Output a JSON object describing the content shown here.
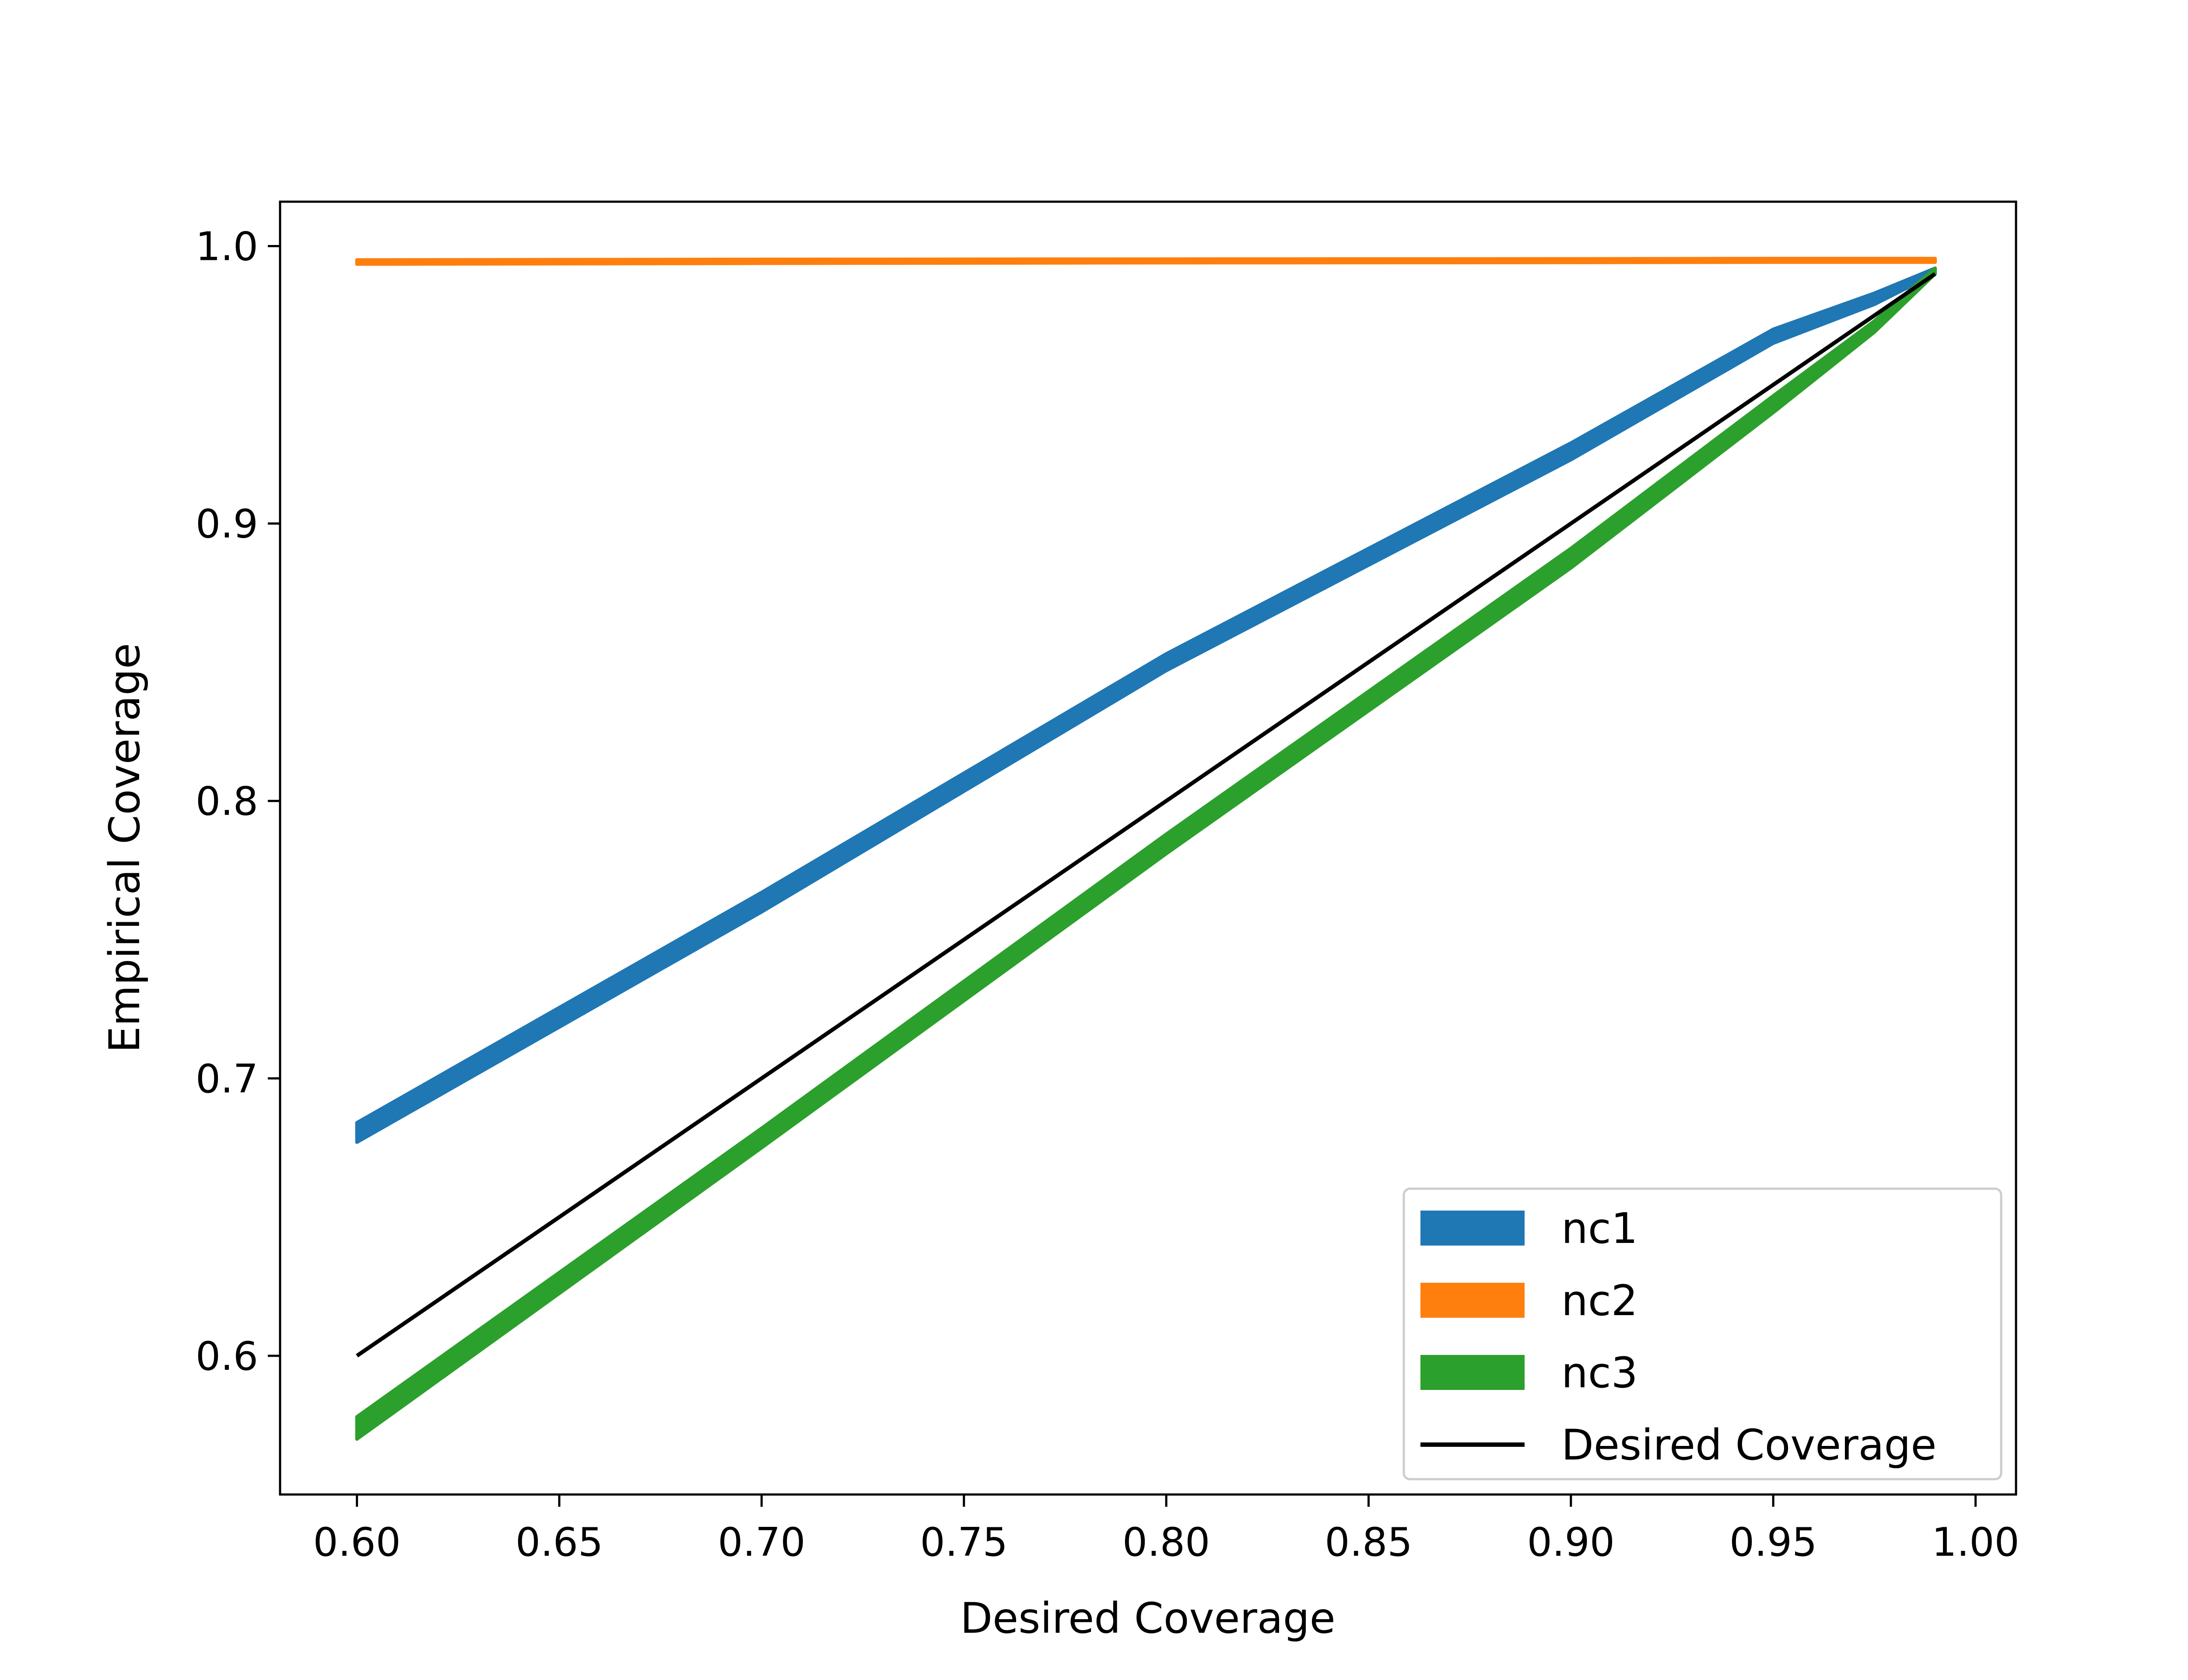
{
  "chart_data": {
    "type": "line",
    "xlabel": "Desired Coverage",
    "ylabel": "Empirical Coverage",
    "xlim": [
      0.581,
      1.01
    ],
    "ylim": [
      0.55,
      1.016
    ],
    "xticks": [
      "0.60",
      "0.65",
      "0.70",
      "0.75",
      "0.80",
      "0.85",
      "0.90",
      "0.95",
      "1.00"
    ],
    "yticks": [
      "0.6",
      "0.7",
      "0.8",
      "0.9",
      "1.0"
    ],
    "grid": false,
    "legend_position": "lower-right",
    "series": [
      {
        "name": "nc1",
        "color": "#1f77b4",
        "band": true,
        "x": [
          0.6,
          0.7,
          0.8,
          0.9,
          0.95,
          0.975,
          0.99
        ],
        "lower": [
          0.677,
          0.76,
          0.847,
          0.923,
          0.965,
          0.979,
          0.99
        ],
        "upper": [
          0.684,
          0.767,
          0.853,
          0.929,
          0.97,
          0.983,
          0.992
        ]
      },
      {
        "name": "nc2",
        "color": "#ff7f0e",
        "band": true,
        "x": [
          0.6,
          0.7,
          0.8,
          0.9,
          0.95,
          0.99
        ],
        "lower": [
          0.9935,
          0.9938,
          0.994,
          0.9941,
          0.9942,
          0.9942
        ],
        "upper": [
          0.995,
          0.9952,
          0.9953,
          0.9954,
          0.9955,
          0.9955
        ]
      },
      {
        "name": "nc3",
        "color": "#2ca02c",
        "band": true,
        "x": [
          0.6,
          0.7,
          0.8,
          0.9,
          0.95,
          0.975,
          0.99
        ],
        "lower": [
          0.57,
          0.675,
          0.781,
          0.884,
          0.94,
          0.969,
          0.99
        ],
        "upper": [
          0.578,
          0.682,
          0.788,
          0.891,
          0.946,
          0.973,
          0.992
        ]
      },
      {
        "name": "Desired Coverage",
        "color": "#000000",
        "band": false,
        "x": [
          0.6,
          0.99
        ],
        "y": [
          0.6,
          0.99
        ]
      }
    ]
  }
}
